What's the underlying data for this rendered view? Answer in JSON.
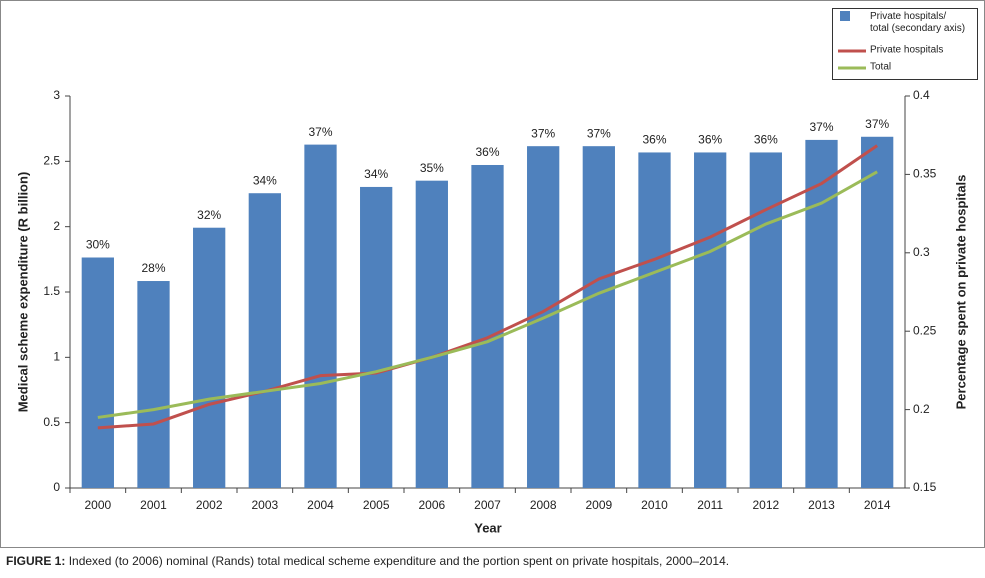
{
  "chart_data": {
    "type": "bar",
    "categories": [
      "2000",
      "2001",
      "2002",
      "2003",
      "2004",
      "2005",
      "2006",
      "2007",
      "2008",
      "2009",
      "2010",
      "2011",
      "2012",
      "2013",
      "2014"
    ],
    "x_label": "Year",
    "y_label": "Medical scheme expenditure (R billion)",
    "y2_label": "Percentage spent on private hospitals",
    "ylim": [
      0,
      3
    ],
    "yticks": [
      0,
      0.5,
      1,
      1.5,
      2,
      2.5,
      3
    ],
    "y2lim": [
      0.15,
      0.4
    ],
    "y2ticks": [
      0.15,
      0.2,
      0.25,
      0.3,
      0.35,
      0.4
    ],
    "legend": "top-right",
    "series": [
      {
        "name": "Private hospitals/ total (secondary axis)",
        "type": "bar",
        "axis": "y2",
        "color": "#4f81bd",
        "values": [
          0.297,
          0.282,
          0.316,
          0.338,
          0.369,
          0.342,
          0.346,
          0.356,
          0.368,
          0.368,
          0.364,
          0.364,
          0.364,
          0.372,
          0.374
        ],
        "value_labels": [
          "30%",
          "28%",
          "32%",
          "34%",
          "37%",
          "34%",
          "35%",
          "36%",
          "37%",
          "37%",
          "36%",
          "36%",
          "36%",
          "37%",
          "37%"
        ]
      },
      {
        "name": "Private hospitals",
        "type": "line",
        "axis": "y",
        "color": "#c0504d",
        "values": [
          0.46,
          0.49,
          0.64,
          0.74,
          0.86,
          0.88,
          1.0,
          1.15,
          1.35,
          1.6,
          1.75,
          1.92,
          2.13,
          2.33,
          2.62
        ]
      },
      {
        "name": "Total",
        "type": "line",
        "axis": "y",
        "color": "#9bbb59",
        "values": [
          0.54,
          0.6,
          0.68,
          0.74,
          0.8,
          0.89,
          1.0,
          1.12,
          1.3,
          1.49,
          1.65,
          1.81,
          2.02,
          2.18,
          2.42
        ]
      }
    ]
  },
  "figure_caption": {
    "label": "FIGURE 1:",
    "text": "Indexed (to 2006) nominal (Rands) total medical scheme expenditure and the portion spent on private hospitals, 2000–2014."
  }
}
